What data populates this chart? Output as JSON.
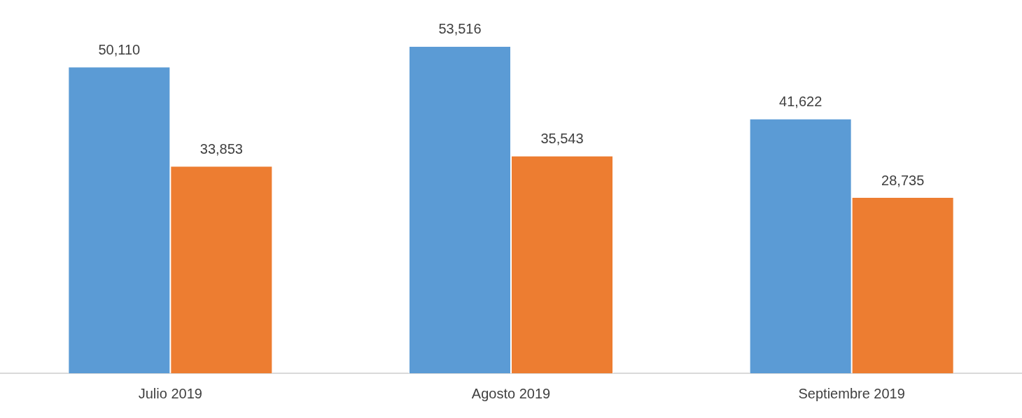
{
  "chart_data": {
    "type": "bar",
    "categories": [
      "Julio 2019",
      "Agosto 2019",
      "Septiembre 2019"
    ],
    "series": [
      {
        "color": "#5b9bd5",
        "values": [
          50110,
          53516,
          41622
        ],
        "value_labels": [
          "50,110",
          "53,516",
          "41,622"
        ]
      },
      {
        "color": "#ed7d31",
        "values": [
          33853,
          35543,
          28735
        ],
        "value_labels": [
          "33,853",
          "35,543",
          "28,735"
        ]
      }
    ],
    "grid": false,
    "legend": false,
    "tick_labels": "x"
  }
}
